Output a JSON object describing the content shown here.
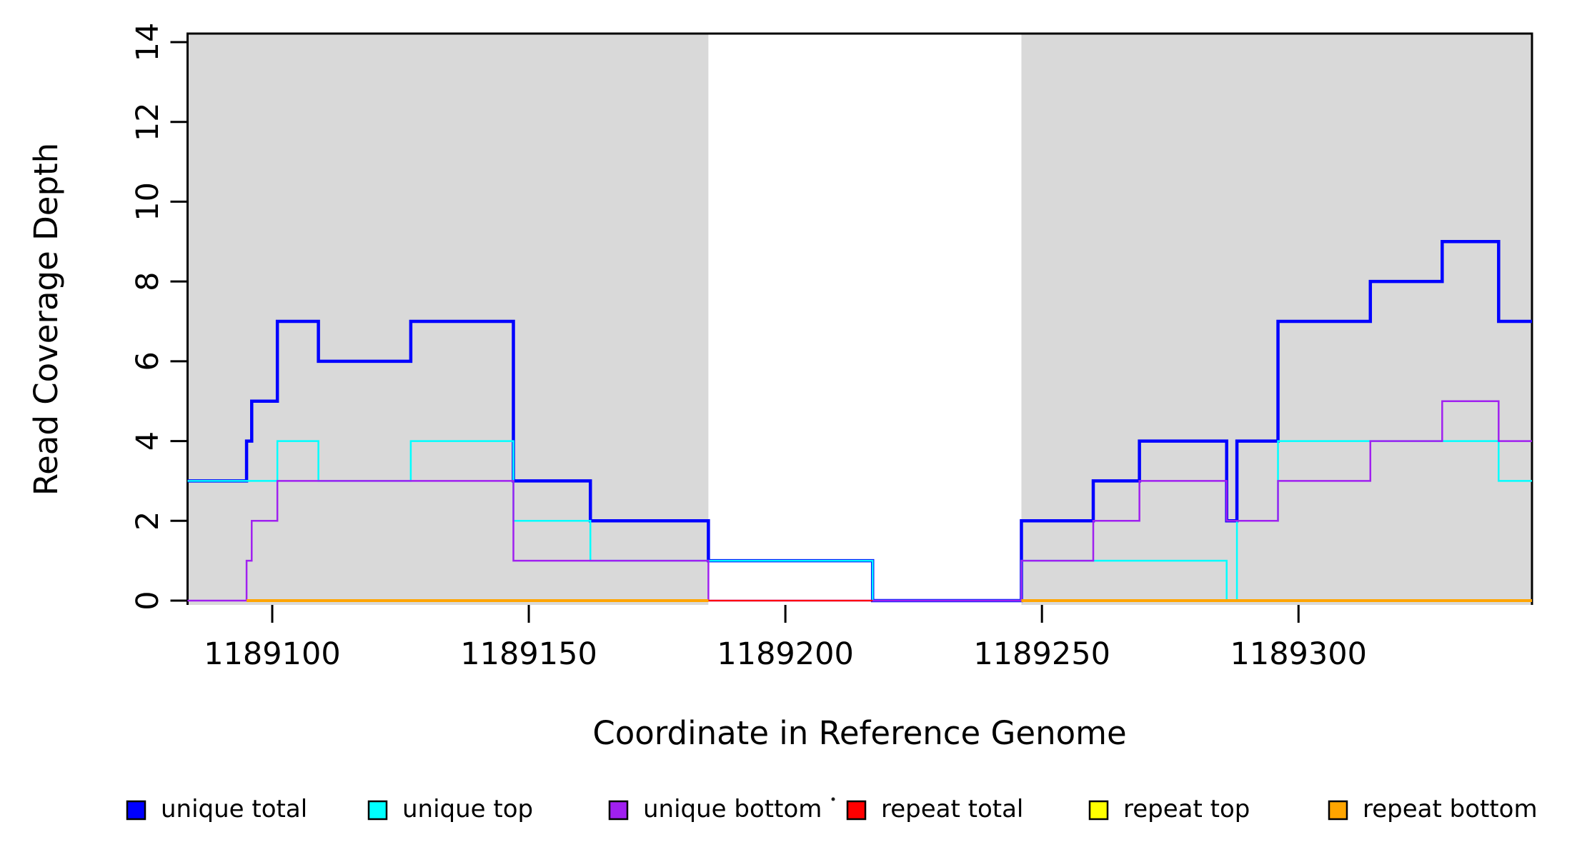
{
  "figure": {
    "background": "#ffffff",
    "plot_background_shaded": "#d9d9d9",
    "border_color": "#000000"
  },
  "chart_data": {
    "type": "line",
    "subtype": "step",
    "title": "",
    "xlabel": "Coordinate in Reference Genome",
    "ylabel": "Read Coverage Depth",
    "xlim": [
      1189083.5,
      1189345.5
    ],
    "ylim": [
      0,
      14
    ],
    "x_ticks": [
      1189100,
      1189150,
      1189200,
      1189250,
      1189300
    ],
    "y_ticks": [
      0,
      2,
      4,
      6,
      8,
      10,
      12,
      14
    ],
    "grid": false,
    "legend_position": "bottom",
    "shaded_regions": [
      {
        "x0": 1189083.5,
        "x1": 1189185,
        "color": "#d9d9d9"
      },
      {
        "x0": 1189246,
        "x1": 1189345.5,
        "color": "#d9d9d9"
      }
    ],
    "series": [
      {
        "name": "unique total",
        "color": "#0000ff",
        "width": 4.5,
        "segments": [
          [
            1189083.5,
            1189095,
            3
          ],
          [
            1189095,
            1189096,
            4
          ],
          [
            1189096,
            1189101,
            5
          ],
          [
            1189101,
            1189109,
            7
          ],
          [
            1189109,
            1189127,
            6
          ],
          [
            1189127,
            1189147,
            7
          ],
          [
            1189147,
            1189162,
            3
          ],
          [
            1189162,
            1189185,
            2
          ],
          [
            1189185,
            1189217,
            1
          ],
          [
            1189217,
            1189246,
            0
          ],
          [
            1189246,
            1189260,
            2
          ],
          [
            1189260,
            1189269,
            3
          ],
          [
            1189269,
            1189286,
            4
          ],
          [
            1189286,
            1189288,
            2
          ],
          [
            1189288,
            1189296,
            4
          ],
          [
            1189296,
            1189314,
            7
          ],
          [
            1189314,
            1189328,
            8
          ],
          [
            1189328,
            1189339,
            9
          ],
          [
            1189339,
            1189345.5,
            7
          ]
        ]
      },
      {
        "name": "unique top",
        "color": "#00ffff",
        "width": 2.5,
        "segments": [
          [
            1189083.5,
            1189101,
            3
          ],
          [
            1189101,
            1189109,
            4
          ],
          [
            1189109,
            1189127,
            3
          ],
          [
            1189127,
            1189147,
            4
          ],
          [
            1189147,
            1189162,
            2
          ],
          [
            1189162,
            1189217,
            1
          ],
          [
            1189217,
            1189246,
            0
          ],
          [
            1189246,
            1189286,
            1
          ],
          [
            1189286,
            1189288,
            0
          ],
          [
            1189288,
            1189296,
            2
          ],
          [
            1189296,
            1189339,
            4
          ],
          [
            1189339,
            1189345.5,
            3
          ]
        ]
      },
      {
        "name": "unique bottom",
        "color": "#a020f0",
        "width": 2.5,
        "segments": [
          [
            1189083.5,
            1189095,
            0
          ],
          [
            1189095,
            1189096,
            1
          ],
          [
            1189096,
            1189101,
            2
          ],
          [
            1189101,
            1189147,
            3
          ],
          [
            1189147,
            1189185,
            1
          ],
          [
            1189185,
            1189246,
            0
          ],
          [
            1189246,
            1189260,
            1
          ],
          [
            1189260,
            1189269,
            2
          ],
          [
            1189269,
            1189286,
            3
          ],
          [
            1189286,
            1189296,
            2
          ],
          [
            1189296,
            1189314,
            3
          ],
          [
            1189314,
            1189328,
            4
          ],
          [
            1189328,
            1189339,
            5
          ],
          [
            1189339,
            1189345.5,
            4
          ]
        ]
      },
      {
        "name": "repeat total",
        "color": "#ff0000",
        "width": 2.2,
        "segments": [
          [
            1189095,
            1189217,
            0
          ]
        ]
      },
      {
        "name": "repeat top",
        "color": "#ffff00",
        "width": 2.2,
        "segments": [
          [
            1189095,
            1189185,
            0
          ]
        ]
      },
      {
        "name": "repeat bottom",
        "color": "#ffa500",
        "width": 4,
        "segments": [
          [
            1189095,
            1189185,
            0
          ],
          [
            1189246,
            1189345.5,
            0
          ]
        ]
      }
    ]
  },
  "legend": {
    "items": [
      {
        "label": "unique total",
        "color": "#0000ff"
      },
      {
        "label": "unique top",
        "color": "#00ffff"
      },
      {
        "label": "unique bottom",
        "color": "#a020f0"
      },
      {
        "label": "repeat total",
        "color": "#ff0000"
      },
      {
        "label": "repeat top",
        "color": "#ffff00"
      },
      {
        "label": "repeat bottom",
        "color": "#ffa500"
      }
    ],
    "stray_mark": "."
  }
}
